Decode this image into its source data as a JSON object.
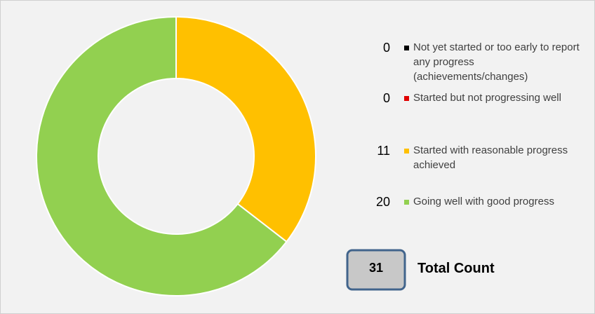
{
  "chart_data": {
    "type": "donut",
    "categories": [
      "Not yet started or too early to report any progress (achievements/changes)",
      "Started but not progressing well",
      "Started with reasonable progress achieved",
      "Going well with good progress"
    ],
    "values": [
      0,
      0,
      11,
      20
    ],
    "colors": [
      "#000000",
      "#e00000",
      "#ffc000",
      "#92d050"
    ],
    "total": 31,
    "total_label": "Total Count"
  }
}
